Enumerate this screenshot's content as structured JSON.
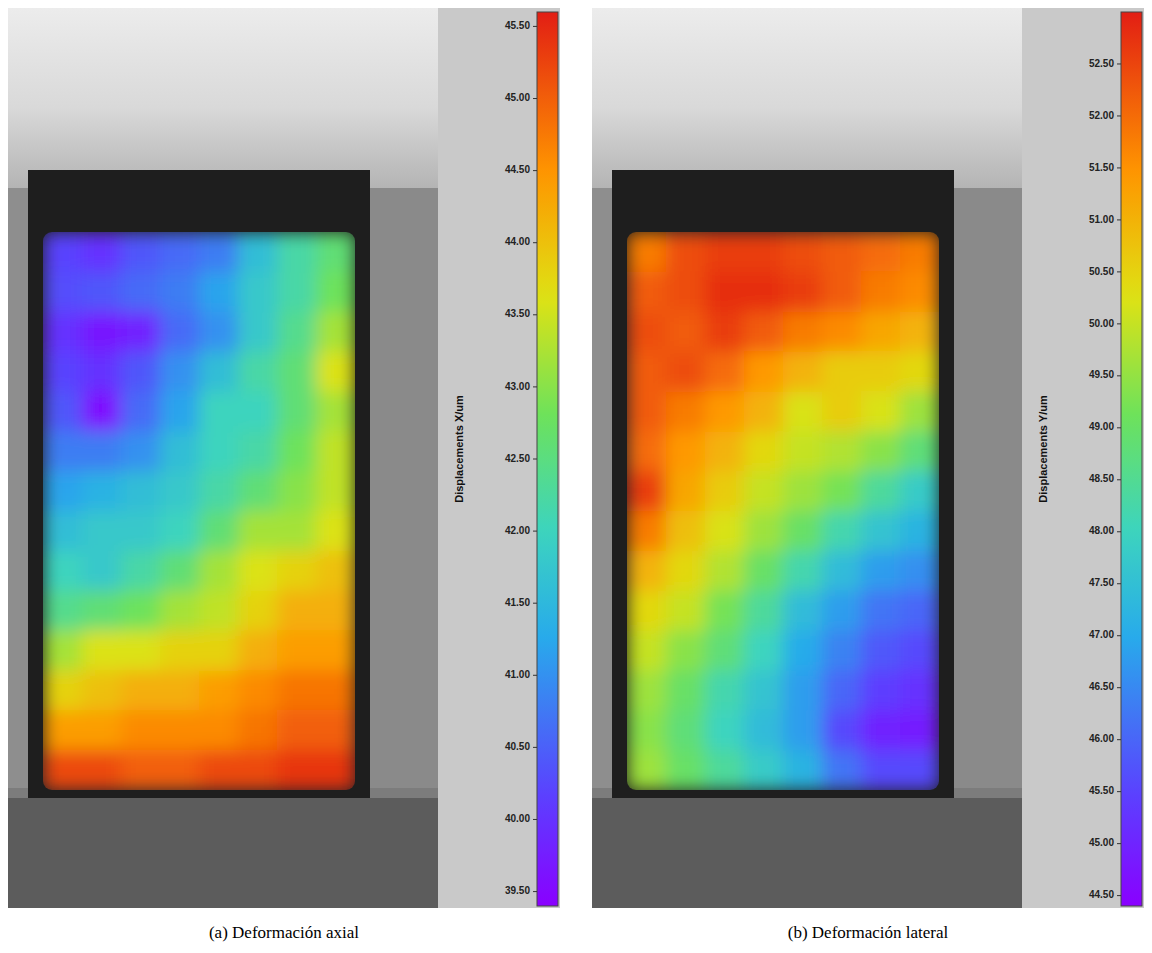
{
  "chart_data": [
    {
      "type": "heatmap",
      "title": "(a) Deformación axial",
      "colorbar_label": "Displacements X/um",
      "colorbar_range": [
        39.4,
        45.6
      ],
      "colorbar_ticks": [
        {
          "value": 39.5,
          "label": "39.50"
        },
        {
          "value": 40,
          "label": "40.00"
        },
        {
          "value": 40.5,
          "label": "40.50"
        },
        {
          "value": 41,
          "label": "41.00"
        },
        {
          "value": 41.5,
          "label": "41.50"
        },
        {
          "value": 42,
          "label": "42.00"
        },
        {
          "value": 42.5,
          "label": "42.50"
        },
        {
          "value": 43,
          "label": "43.00"
        },
        {
          "value": 43.5,
          "label": "43.50"
        },
        {
          "value": 44,
          "label": "44.00"
        },
        {
          "value": 44.5,
          "label": "44.50"
        },
        {
          "value": 45,
          "label": "45.00"
        },
        {
          "value": 45.5,
          "label": "45.50"
        }
      ],
      "cells": [
        [
          40.2,
          40.0,
          40.4,
          40.6,
          40.8,
          41.6,
          42.2,
          42.6
        ],
        [
          40.3,
          40.4,
          40.6,
          40.8,
          41.2,
          41.8,
          42.2,
          42.8
        ],
        [
          40.0,
          39.7,
          39.8,
          40.6,
          41.0,
          41.8,
          42.4,
          43.2
        ],
        [
          40.2,
          40.0,
          40.4,
          41.0,
          41.6,
          42.2,
          42.6,
          43.6
        ],
        [
          40.4,
          39.6,
          40.6,
          41.2,
          42.0,
          42.0,
          42.6,
          43.2
        ],
        [
          40.8,
          40.8,
          41.0,
          41.6,
          42.0,
          42.2,
          42.8,
          43.4
        ],
        [
          41.2,
          41.4,
          41.6,
          41.8,
          42.2,
          42.6,
          43.0,
          43.4
        ],
        [
          41.6,
          41.8,
          41.8,
          42.0,
          42.6,
          43.2,
          43.2,
          43.6
        ],
        [
          42.0,
          41.8,
          42.2,
          42.6,
          43.2,
          43.6,
          43.8,
          44.0
        ],
        [
          42.4,
          42.6,
          42.8,
          43.2,
          43.4,
          43.8,
          44.2,
          44.2
        ],
        [
          43.2,
          43.6,
          43.6,
          43.8,
          43.8,
          44.2,
          44.4,
          44.4
        ],
        [
          43.8,
          44.0,
          44.2,
          44.2,
          44.4,
          44.6,
          44.8,
          44.8
        ],
        [
          44.4,
          44.4,
          44.6,
          44.6,
          44.6,
          44.8,
          45.0,
          45.0
        ],
        [
          45.2,
          45.2,
          45.0,
          45.0,
          45.2,
          45.2,
          45.4,
          45.4
        ]
      ]
    },
    {
      "type": "heatmap",
      "title": "(b) Deformación lateral",
      "colorbar_label": "Displacements Y/um",
      "colorbar_range": [
        44.4,
        53.0
      ],
      "colorbar_ticks": [
        {
          "value": 44.5,
          "label": "44.50"
        },
        {
          "value": 45,
          "label": "45.00"
        },
        {
          "value": 45.5,
          "label": "45.50"
        },
        {
          "value": 46,
          "label": "46.00"
        },
        {
          "value": 46.5,
          "label": "46.50"
        },
        {
          "value": 47,
          "label": "47.00"
        },
        {
          "value": 47.5,
          "label": "47.50"
        },
        {
          "value": 48,
          "label": "48.00"
        },
        {
          "value": 48.5,
          "label": "48.50"
        },
        {
          "value": 49,
          "label": "49.00"
        },
        {
          "value": 49.5,
          "label": "49.50"
        },
        {
          "value": 50,
          "label": "50.00"
        },
        {
          "value": 50.5,
          "label": "50.50"
        },
        {
          "value": 51,
          "label": "51.00"
        },
        {
          "value": 51.5,
          "label": "51.50"
        },
        {
          "value": 52,
          "label": "52.00"
        },
        {
          "value": 52.5,
          "label": "52.50"
        }
      ],
      "cells": [
        [
          51.8,
          52.4,
          52.6,
          52.6,
          52.4,
          52.2,
          52.0,
          51.8
        ],
        [
          52.2,
          52.4,
          52.8,
          52.8,
          52.6,
          52.2,
          51.8,
          51.6
        ],
        [
          52.4,
          52.2,
          52.6,
          52.2,
          51.8,
          51.6,
          51.2,
          51.0
        ],
        [
          52.2,
          52.4,
          52.0,
          51.4,
          51.0,
          50.6,
          50.6,
          50.4
        ],
        [
          52.2,
          51.8,
          51.4,
          51.0,
          50.2,
          50.6,
          50.2,
          49.6
        ],
        [
          52.0,
          51.4,
          51.0,
          50.4,
          50.0,
          49.8,
          49.4,
          48.8
        ],
        [
          52.6,
          51.2,
          50.6,
          50.0,
          49.6,
          49.2,
          48.4,
          47.8
        ],
        [
          51.8,
          50.8,
          50.2,
          49.6,
          49.0,
          48.2,
          47.6,
          47.2
        ],
        [
          51.0,
          50.4,
          49.8,
          49.0,
          48.2,
          47.4,
          46.8,
          46.6
        ],
        [
          50.4,
          50.0,
          49.2,
          48.4,
          47.4,
          46.8,
          46.2,
          46.0
        ],
        [
          50.0,
          49.4,
          48.8,
          48.0,
          47.0,
          46.4,
          45.8,
          45.6
        ],
        [
          49.6,
          49.0,
          48.2,
          47.6,
          46.8,
          46.0,
          45.4,
          45.2
        ],
        [
          49.4,
          48.8,
          48.0,
          47.4,
          46.8,
          45.6,
          45.0,
          44.9
        ],
        [
          49.6,
          49.0,
          48.4,
          47.8,
          47.2,
          46.2,
          45.6,
          45.6
        ]
      ]
    }
  ]
}
